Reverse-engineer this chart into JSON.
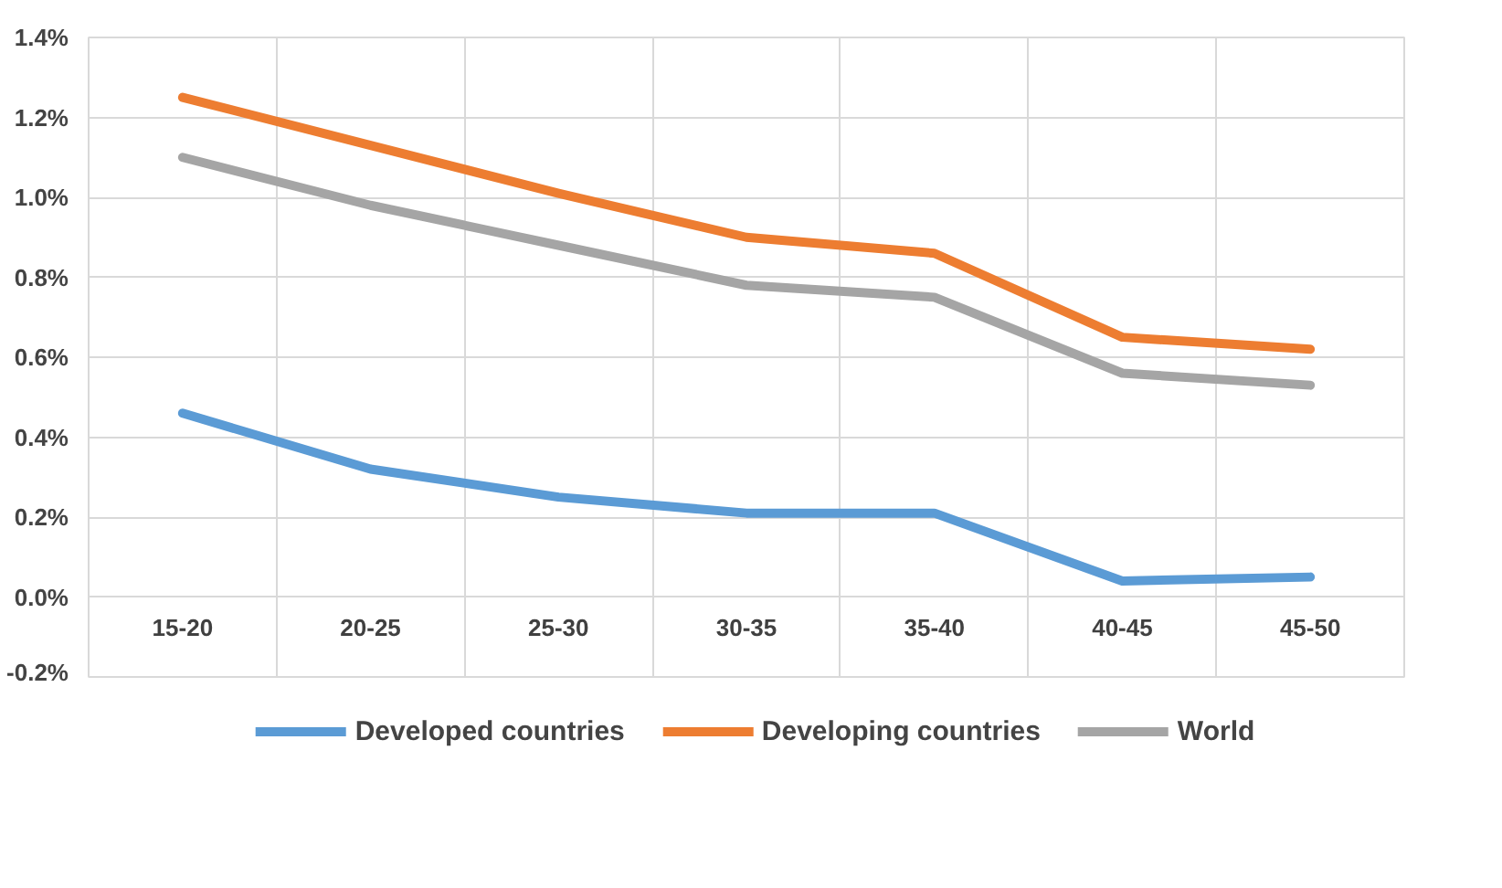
{
  "chart_data": {
    "type": "line",
    "categories": [
      "15-20",
      "20-25",
      "25-30",
      "30-35",
      "35-40",
      "40-45",
      "45-50"
    ],
    "series": [
      {
        "name": "Developed countries",
        "color": "#5b9bd5",
        "values": [
          0.46,
          0.32,
          0.25,
          0.21,
          0.21,
          0.04,
          0.05
        ]
      },
      {
        "name": "Developing countries",
        "color": "#ed7d31",
        "values": [
          1.25,
          1.13,
          1.01,
          0.9,
          0.86,
          0.65,
          0.62
        ]
      },
      {
        "name": "World",
        "color": "#a5a5a5",
        "values": [
          1.1,
          0.98,
          0.88,
          0.78,
          0.75,
          0.56,
          0.53
        ]
      }
    ],
    "ylim": [
      -0.2,
      1.4
    ],
    "yticks": [
      {
        "value": -0.2,
        "label": "-0.2%"
      },
      {
        "value": 0.0,
        "label": "0.0%"
      },
      {
        "value": 0.2,
        "label": "0.2%"
      },
      {
        "value": 0.4,
        "label": "0.4%"
      },
      {
        "value": 0.6,
        "label": "0.6%"
      },
      {
        "value": 0.8,
        "label": "0.8%"
      },
      {
        "value": 1.0,
        "label": "1.0%"
      },
      {
        "value": 1.2,
        "label": "1.2%"
      },
      {
        "value": 1.4,
        "label": "1.4%"
      }
    ],
    "grid": true,
    "legend": "bottom",
    "marker": "none",
    "line_style": "solid"
  }
}
